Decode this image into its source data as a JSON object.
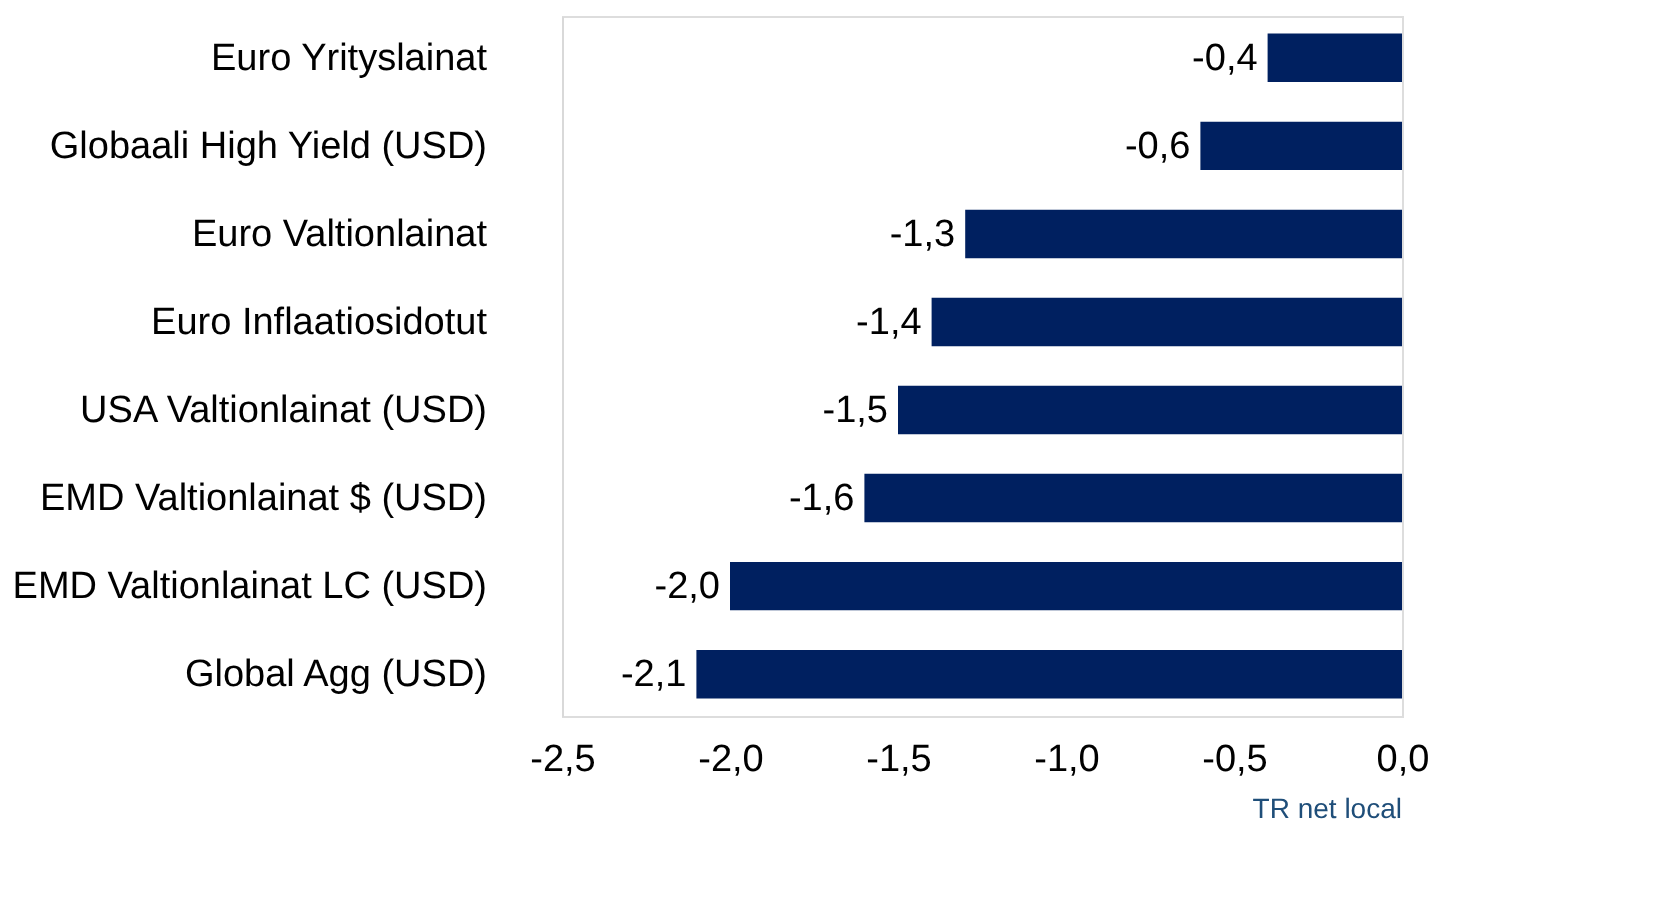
{
  "chart_data": {
    "type": "bar",
    "orientation": "horizontal",
    "categories": [
      "Euro Yrityslainat",
      "Globaali High Yield (USD)",
      "Euro Valtionlainat",
      "Euro Inflaatiosidotut",
      "USA Valtionlainat (USD)",
      "EMD Valtionlainat $ (USD)",
      "EMD Valtionlainat LC (USD)",
      "Global Agg (USD)"
    ],
    "values": [
      -0.4,
      -0.6,
      -1.3,
      -1.4,
      -1.5,
      -1.6,
      -2.0,
      -2.1
    ],
    "value_labels": [
      "-0,4",
      "-0,6",
      "-1,3",
      "-1,4",
      "-1,5",
      "-1,6",
      "-2,0",
      "-2,1"
    ],
    "color": "#002060",
    "xlim": [
      -2.5,
      0
    ],
    "xticks": [
      {
        "value": -2.5,
        "label": "-2,5"
      },
      {
        "value": -2.0,
        "label": "-2,0"
      },
      {
        "value": -1.5,
        "label": "-1,5"
      },
      {
        "value": -1.0,
        "label": "-1,0"
      },
      {
        "value": -0.5,
        "label": "-0,5"
      },
      {
        "value": 0,
        "label": "0,0"
      }
    ],
    "grid": false,
    "annotations": [
      "TR net local"
    ]
  }
}
